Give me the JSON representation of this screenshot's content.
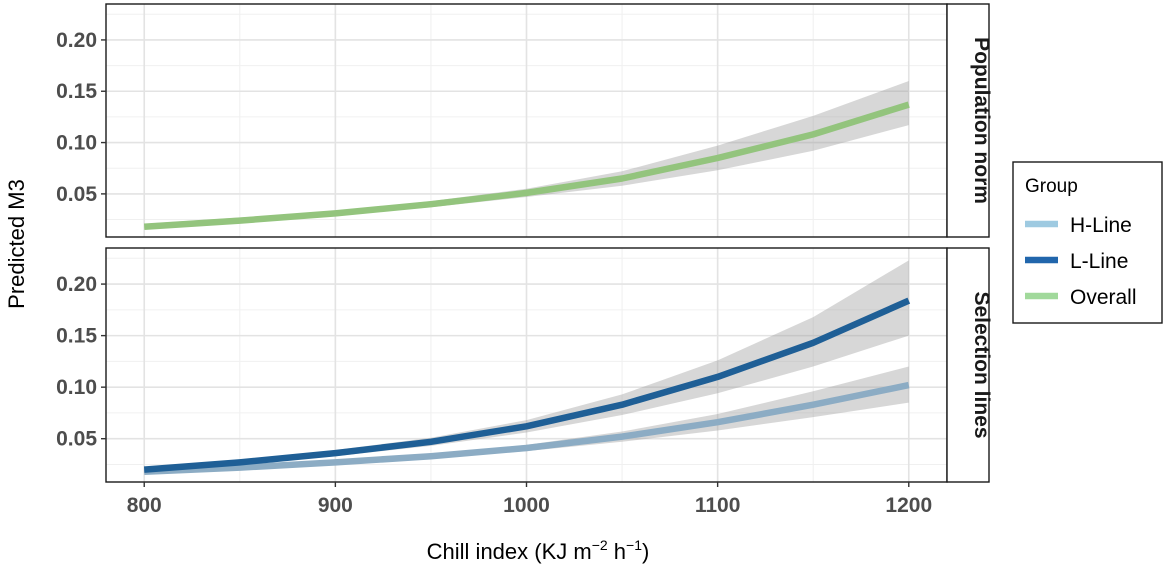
{
  "chart_data": {
    "type": "line",
    "xlabel": "Chill index (KJ m",
    "xlabel_sup1": "−2",
    "xlabel_mid": " h",
    "xlabel_sup2": "−1",
    "xlabel_end": ")",
    "ylabel": "Predicted M3",
    "xlim": [
      780,
      1220
    ],
    "x_ticks": [
      800,
      900,
      1000,
      1100,
      1200
    ],
    "x_tick_labels": [
      "800",
      "900",
      "1000",
      "1100",
      "1200"
    ],
    "grid": true,
    "legend": {
      "title": "Group",
      "placement": "right",
      "entries": [
        {
          "label": "H-Line",
          "color": "#9ecae1"
        },
        {
          "label": "L-Line",
          "color": "#2166ac"
        },
        {
          "label": "Overall",
          "color": "#a1d99b"
        }
      ]
    },
    "panels": [
      {
        "strip": "Population norm",
        "ylim": [
          0.008,
          0.235
        ],
        "y_ticks": [
          0.05,
          0.1,
          0.15,
          0.2
        ],
        "y_tick_labels": [
          "0.05",
          "0.10",
          "0.15",
          "0.20"
        ],
        "series": [
          {
            "name": "Overall",
            "color": "#93c47d",
            "x": [
              800,
              850,
              900,
              950,
              1000,
              1050,
              1100,
              1150,
              1200
            ],
            "y": [
              0.018,
              0.024,
              0.031,
              0.04,
              0.051,
              0.065,
              0.085,
              0.108,
              0.137
            ],
            "lower": [
              0.016,
              0.022,
              0.029,
              0.037,
              0.047,
              0.058,
              0.073,
              0.092,
              0.117
            ],
            "upper": [
              0.021,
              0.027,
              0.033,
              0.043,
              0.055,
              0.072,
              0.097,
              0.126,
              0.16
            ]
          }
        ]
      },
      {
        "strip": "Selection lines",
        "ylim": [
          0.008,
          0.235
        ],
        "y_ticks": [
          0.05,
          0.1,
          0.15,
          0.2
        ],
        "y_tick_labels": [
          "0.05",
          "0.10",
          "0.15",
          "0.20"
        ],
        "series": [
          {
            "name": "H-Line",
            "color": "#8cacc4",
            "x": [
              800,
              850,
              900,
              950,
              1000,
              1050,
              1100,
              1150,
              1200
            ],
            "y": [
              0.018,
              0.022,
              0.027,
              0.033,
              0.041,
              0.052,
              0.066,
              0.083,
              0.102
            ],
            "lower": [
              0.016,
              0.02,
              0.025,
              0.031,
              0.038,
              0.047,
              0.058,
              0.071,
              0.085
            ],
            "upper": [
              0.02,
              0.024,
              0.029,
              0.035,
              0.044,
              0.057,
              0.074,
              0.096,
              0.12
            ]
          },
          {
            "name": "L-Line",
            "color": "#1f5f96",
            "x": [
              800,
              850,
              900,
              950,
              1000,
              1050,
              1100,
              1150,
              1200
            ],
            "y": [
              0.02,
              0.027,
              0.036,
              0.047,
              0.062,
              0.083,
              0.11,
              0.143,
              0.184
            ],
            "lower": [
              0.018,
              0.025,
              0.033,
              0.043,
              0.056,
              0.073,
              0.094,
              0.12,
              0.15
            ],
            "upper": [
              0.022,
              0.029,
              0.039,
              0.051,
              0.068,
              0.093,
              0.126,
              0.168,
              0.223
            ]
          }
        ]
      }
    ]
  }
}
